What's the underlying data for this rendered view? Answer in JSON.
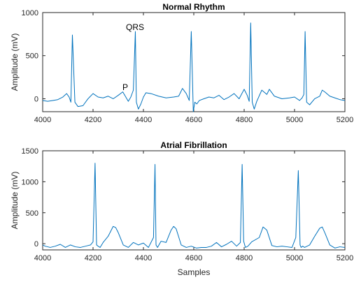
{
  "chart_data": [
    {
      "type": "line",
      "title": "Normal Rhythm",
      "xlabel": "",
      "ylabel": "Amplitude (mV)",
      "xlim": [
        4000,
        5200
      ],
      "ylim": [
        -150,
        1000
      ],
      "xticks": [
        4000,
        4200,
        4400,
        4600,
        4800,
        5000,
        5200
      ],
      "xtick_labels": [
        "4000",
        "4200",
        "4400",
        "4600",
        "4800",
        "5000",
        "5200"
      ],
      "yticks": [
        0,
        500,
        1000
      ],
      "ytick_labels": [
        "0",
        "500",
        "1000"
      ],
      "grid": false,
      "color": "#0072BD",
      "annotations": [
        {
          "text": "QRS",
          "x": 4360,
          "y": 800
        },
        {
          "text": "P",
          "x": 4325,
          "y": 150
        }
      ],
      "series": [
        {
          "x": [
            4000,
            4020,
            4040,
            4060,
            4080,
            4095,
            4105,
            4112,
            4118,
            4128,
            4140,
            4160,
            4180,
            4200,
            4220,
            4240,
            4260,
            4280,
            4300,
            4318,
            4330,
            4340,
            4350,
            4360,
            4368,
            4372,
            4380,
            4390,
            4400,
            4410,
            4430,
            4460,
            4490,
            4520,
            4540,
            4555,
            4570,
            4582,
            4590,
            4598,
            4604,
            4612,
            4622,
            4640,
            4660,
            4680,
            4700,
            4720,
            4740,
            4760,
            4780,
            4800,
            4812,
            4820,
            4826,
            4832,
            4840,
            4850,
            4870,
            4890,
            4900,
            4920,
            4950,
            4980,
            5000,
            5020,
            5030,
            5037,
            5042,
            5048,
            5060,
            5080,
            5100,
            5110,
            5120,
            5140,
            5160,
            5180,
            5200
          ],
          "y": [
            -20,
            -30,
            -20,
            -10,
            20,
            60,
            20,
            -40,
            740,
            -40,
            -90,
            -80,
            0,
            60,
            20,
            10,
            30,
            0,
            40,
            80,
            20,
            -30,
            20,
            100,
            780,
            -40,
            -120,
            -60,
            20,
            70,
            60,
            30,
            10,
            20,
            30,
            120,
            60,
            -20,
            780,
            -150,
            -40,
            -60,
            -20,
            0,
            20,
            10,
            40,
            -10,
            20,
            60,
            0,
            110,
            40,
            -30,
            880,
            -40,
            -120,
            -30,
            100,
            50,
            110,
            30,
            0,
            10,
            20,
            -20,
            10,
            50,
            780,
            -40,
            -70,
            0,
            30,
            100,
            80,
            30,
            10,
            -10,
            -20
          ]
        }
      ]
    },
    {
      "type": "line",
      "title": "Atrial Fibrillation",
      "xlabel": "Samples",
      "ylabel": "Amplitude (mV)",
      "xlim": [
        4000,
        5200
      ],
      "ylim": [
        -100,
        1500
      ],
      "xticks": [
        4000,
        4200,
        4400,
        4600,
        4800,
        5000,
        5200
      ],
      "xtick_labels": [
        "4000",
        "4200",
        "4400",
        "4600",
        "4800",
        "5000",
        "5200"
      ],
      "yticks": [
        0,
        500,
        1000,
        1500
      ],
      "ytick_labels": [
        "0",
        "500",
        "1000",
        "1500"
      ],
      "grid": false,
      "color": "#0072BD",
      "series": [
        {
          "x": [
            4000,
            4010,
            4030,
            4050,
            4070,
            4090,
            4110,
            4130,
            4150,
            4170,
            4190,
            4200,
            4208,
            4214,
            4220,
            4228,
            4240,
            4260,
            4280,
            4290,
            4300,
            4320,
            4340,
            4360,
            4380,
            4400,
            4420,
            4440,
            4446,
            4450,
            4456,
            4470,
            4490,
            4510,
            4520,
            4530,
            4550,
            4570,
            4590,
            4610,
            4630,
            4650,
            4670,
            4690,
            4710,
            4730,
            4750,
            4770,
            4785,
            4792,
            4798,
            4805,
            4815,
            4830,
            4860,
            4875,
            4890,
            4910,
            4930,
            4950,
            4970,
            4990,
            5005,
            5015,
            5022,
            5026,
            5032,
            5040,
            5060,
            5080,
            5100,
            5110,
            5120,
            5140,
            5160,
            5180,
            5200
          ],
          "y": [
            -20,
            -40,
            -60,
            -40,
            -10,
            -60,
            -20,
            -50,
            -60,
            -40,
            -20,
            30,
            1300,
            -20,
            -40,
            -60,
            20,
            120,
            280,
            260,
            180,
            -20,
            -60,
            20,
            -20,
            10,
            -60,
            100,
            1280,
            -20,
            -60,
            40,
            20,
            220,
            280,
            240,
            -20,
            -60,
            -40,
            -70,
            -60,
            -60,
            -40,
            20,
            -50,
            -10,
            40,
            -40,
            20,
            1280,
            40,
            -60,
            -40,
            30,
            100,
            270,
            220,
            -30,
            -50,
            -40,
            -50,
            -60,
            100,
            1180,
            -20,
            -60,
            -40,
            -60,
            -20,
            120,
            250,
            270,
            180,
            -20,
            -70,
            -50,
            -60
          ]
        }
      ]
    }
  ]
}
